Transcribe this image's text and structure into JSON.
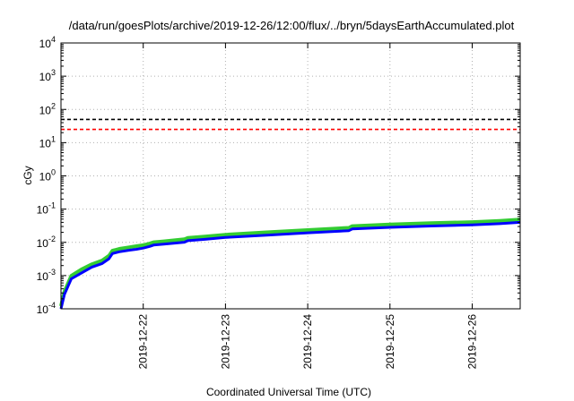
{
  "chart_data": {
    "type": "line",
    "title": "/data/run/goesPlots/archive/2019-12-26/12:00/flux/../bryn/5daysEarthAccumulated.plot",
    "xlabel": "Coordinated Universal Time (UTC)",
    "ylabel": "cGy",
    "y_scale": "log",
    "ylim": [
      0.0001,
      10000
    ],
    "xlim": [
      "2019-12-21T00:00",
      "2019-12-26T14:00"
    ],
    "y_ticks": [
      {
        "value": 0.0001,
        "base": "10",
        "exp": "-4"
      },
      {
        "value": 0.001,
        "base": "10",
        "exp": "-3"
      },
      {
        "value": 0.01,
        "base": "10",
        "exp": "-2"
      },
      {
        "value": 0.1,
        "base": "10",
        "exp": "-1"
      },
      {
        "value": 1,
        "base": "10",
        "exp": "0"
      },
      {
        "value": 10,
        "base": "10",
        "exp": "1"
      },
      {
        "value": 100,
        "base": "10",
        "exp": "2"
      },
      {
        "value": 1000,
        "base": "10",
        "exp": "3"
      },
      {
        "value": 10000,
        "base": "10",
        "exp": "4"
      }
    ],
    "x_ticks": [
      {
        "value": "2019-12-22T00:00",
        "label": "2019-12-22"
      },
      {
        "value": "2019-12-23T00:00",
        "label": "2019-12-23"
      },
      {
        "value": "2019-12-24T00:00",
        "label": "2019-12-24"
      },
      {
        "value": "2019-12-25T00:00",
        "label": "2019-12-25"
      },
      {
        "value": "2019-12-26T00:00",
        "label": "2019-12-26"
      }
    ],
    "grid": true,
    "thresholds": [
      {
        "value": 50,
        "color": "#000000",
        "style": "dashed"
      },
      {
        "value": 25,
        "color": "#ff0000",
        "style": "dashed"
      }
    ],
    "series": [
      {
        "color": "#33cc33",
        "x": [
          "2019-12-21T00:00",
          "2019-12-21T01:00",
          "2019-12-21T03:00",
          "2019-12-21T06:00",
          "2019-12-21T09:00",
          "2019-12-21T12:00",
          "2019-12-21T14:00",
          "2019-12-21T15:00",
          "2019-12-21T17:00",
          "2019-12-21T20:00",
          "2019-12-21T22:00",
          "2019-12-22T00:00",
          "2019-12-22T02:00",
          "2019-12-22T03:00",
          "2019-12-22T06:00",
          "2019-12-22T12:00",
          "2019-12-22T13:00",
          "2019-12-22T18:00",
          "2019-12-23T00:00",
          "2019-12-23T12:00",
          "2019-12-24T00:00",
          "2019-12-24T12:00",
          "2019-12-24T13:00",
          "2019-12-25T00:00",
          "2019-12-25T12:00",
          "2019-12-26T00:00",
          "2019-12-26T08:00",
          "2019-12-26T14:00"
        ],
        "y": [
          0.00011,
          0.0003,
          0.0009,
          0.0014,
          0.002,
          0.0026,
          0.0036,
          0.0051,
          0.0058,
          0.0065,
          0.007,
          0.0075,
          0.0085,
          0.0092,
          0.0098,
          0.0113,
          0.0125,
          0.0137,
          0.0155,
          0.0183,
          0.0214,
          0.025,
          0.028,
          0.0315,
          0.0345,
          0.0372,
          0.0405,
          0.0445
        ]
      },
      {
        "color": "#0000ff",
        "x": [
          "2019-12-21T00:00",
          "2019-12-21T01:00",
          "2019-12-21T03:00",
          "2019-12-21T06:00",
          "2019-12-21T09:00",
          "2019-12-21T12:00",
          "2019-12-21T14:00",
          "2019-12-21T15:00",
          "2019-12-21T17:00",
          "2019-12-21T20:00",
          "2019-12-21T22:00",
          "2019-12-22T00:00",
          "2019-12-22T02:00",
          "2019-12-22T03:00",
          "2019-12-22T06:00",
          "2019-12-22T12:00",
          "2019-12-22T13:00",
          "2019-12-22T18:00",
          "2019-12-23T00:00",
          "2019-12-23T12:00",
          "2019-12-24T00:00",
          "2019-12-24T12:00",
          "2019-12-24T13:00",
          "2019-12-25T00:00",
          "2019-12-25T12:00",
          "2019-12-26T00:00",
          "2019-12-26T08:00",
          "2019-12-26T14:00"
        ],
        "y": [
          0.0001,
          0.00027,
          0.0008,
          0.0012,
          0.0018,
          0.0023,
          0.0032,
          0.0046,
          0.0052,
          0.0058,
          0.0062,
          0.0067,
          0.0076,
          0.0083,
          0.0088,
          0.0101,
          0.0112,
          0.0123,
          0.014,
          0.0165,
          0.0193,
          0.0225,
          0.0252,
          0.0283,
          0.031,
          0.0335,
          0.0365,
          0.04
        ]
      }
    ]
  }
}
